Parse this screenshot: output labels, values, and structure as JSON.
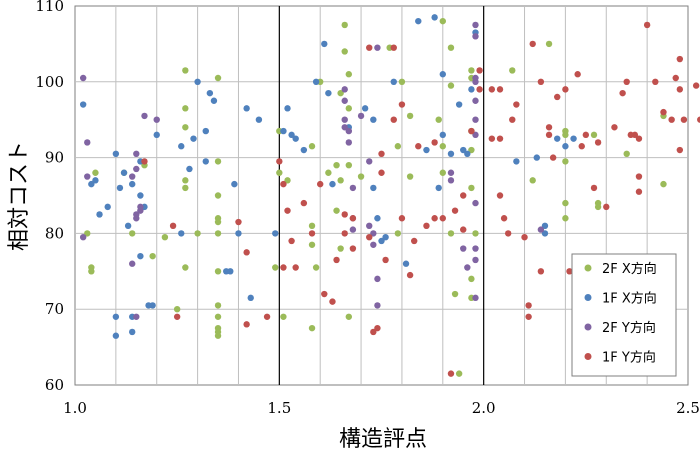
{
  "chart_data": {
    "type": "scatter",
    "title": "",
    "xlabel": "構造評点",
    "ylabel": "相対コスト",
    "xlim": [
      1.0,
      2.5
    ],
    "ylim": [
      60,
      110
    ],
    "x_ticks": [
      "1.0",
      "1.5",
      "2.0",
      "2.5"
    ],
    "y_ticks": [
      "60",
      "70",
      "80",
      "90",
      "100",
      "110"
    ],
    "x_ticks_values": [
      1.0,
      1.5,
      2.0,
      2.5
    ],
    "y_ticks_values": [
      60,
      70,
      80,
      90,
      100,
      110
    ],
    "x_minor_grid_step": 0.1,
    "y_grid_step": 10,
    "reference_lines_x": [
      1.5,
      2.0
    ],
    "grid": true,
    "legend_position": "lower-right",
    "series": [
      {
        "name": "2F X方向",
        "color": "#9bbb59",
        "points": [
          [
            1.04,
            75.5
          ],
          [
            1.04,
            75.0
          ],
          [
            1.03,
            80.0
          ],
          [
            1.05,
            88.0
          ],
          [
            1.12,
            88.0
          ],
          [
            1.14,
            80.0
          ],
          [
            1.17,
            89.0
          ],
          [
            1.19,
            77.0
          ],
          [
            1.22,
            79.5
          ],
          [
            1.25,
            70.0
          ],
          [
            1.27,
            101.5
          ],
          [
            1.27,
            96.5
          ],
          [
            1.27,
            94.0
          ],
          [
            1.27,
            87.0
          ],
          [
            1.27,
            86.0
          ],
          [
            1.27,
            75.5
          ],
          [
            1.3,
            80.0
          ],
          [
            1.35,
            100.5
          ],
          [
            1.35,
            89.5
          ],
          [
            1.35,
            85.0
          ],
          [
            1.35,
            82.0
          ],
          [
            1.35,
            81.5
          ],
          [
            1.35,
            80.0
          ],
          [
            1.35,
            75.0
          ],
          [
            1.35,
            70.5
          ],
          [
            1.35,
            69.0
          ],
          [
            1.35,
            67.5
          ],
          [
            1.35,
            67.0
          ],
          [
            1.35,
            66.5
          ],
          [
            1.49,
            75.5
          ],
          [
            1.5,
            93.5
          ],
          [
            1.5,
            88.0
          ],
          [
            1.51,
            69.0
          ],
          [
            1.52,
            87.0
          ],
          [
            1.58,
            91.5
          ],
          [
            1.58,
            81.0
          ],
          [
            1.58,
            67.5
          ],
          [
            1.58,
            78.5
          ],
          [
            1.59,
            75.5
          ],
          [
            1.6,
            100.0
          ],
          [
            1.62,
            88.0
          ],
          [
            1.64,
            89.0
          ],
          [
            1.64,
            83.0
          ],
          [
            1.65,
            98.5
          ],
          [
            1.65,
            87.0
          ],
          [
            1.65,
            78.0
          ],
          [
            1.66,
            107.5
          ],
          [
            1.66,
            104.0
          ],
          [
            1.67,
            101.0
          ],
          [
            1.67,
            96.5
          ],
          [
            1.67,
            89.0
          ],
          [
            1.67,
            69.0
          ],
          [
            1.7,
            87.5
          ],
          [
            1.77,
            104.5
          ],
          [
            1.79,
            91.5
          ],
          [
            1.79,
            80.0
          ],
          [
            1.8,
            100.0
          ],
          [
            1.82,
            95.5
          ],
          [
            1.82,
            87.5
          ],
          [
            1.9,
            108.0
          ],
          [
            1.92,
            104.5
          ],
          [
            1.92,
            99.5
          ],
          [
            1.89,
            95.0
          ],
          [
            1.9,
            91.5
          ],
          [
            1.9,
            88.0
          ],
          [
            1.92,
            80.0
          ],
          [
            1.93,
            72.0
          ],
          [
            1.94,
            61.5
          ],
          [
            1.97,
            101.5
          ],
          [
            1.97,
            100.5
          ],
          [
            1.97,
            93.5
          ],
          [
            1.97,
            91.0
          ],
          [
            1.97,
            86.0
          ],
          [
            1.98,
            80.0
          ],
          [
            1.97,
            74.0
          ],
          [
            1.97,
            71.5
          ],
          [
            2.07,
            101.5
          ],
          [
            2.12,
            87.0
          ],
          [
            2.16,
            105.0
          ],
          [
            2.2,
            93.5
          ],
          [
            2.2,
            93.0
          ],
          [
            2.2,
            89.5
          ],
          [
            2.2,
            84.0
          ],
          [
            2.2,
            82.0
          ],
          [
            2.27,
            93.0
          ],
          [
            2.28,
            84.0
          ],
          [
            2.28,
            83.5
          ],
          [
            2.35,
            90.5
          ],
          [
            2.44,
            95.5
          ],
          [
            2.44,
            86.5
          ]
        ]
      },
      {
        "name": "1F X方向",
        "color": "#4f81bd",
        "points": [
          [
            1.02,
            97.0
          ],
          [
            1.04,
            86.5
          ],
          [
            1.05,
            87.0
          ],
          [
            1.06,
            82.5
          ],
          [
            1.08,
            83.5
          ],
          [
            1.1,
            90.5
          ],
          [
            1.1,
            69.0
          ],
          [
            1.1,
            66.5
          ],
          [
            1.11,
            86.0
          ],
          [
            1.12,
            88.0
          ],
          [
            1.13,
            81.0
          ],
          [
            1.14,
            86.5
          ],
          [
            1.14,
            69.0
          ],
          [
            1.14,
            67.0
          ],
          [
            1.16,
            89.5
          ],
          [
            1.16,
            85.0
          ],
          [
            1.16,
            77.0
          ],
          [
            1.17,
            83.5
          ],
          [
            1.18,
            70.5
          ],
          [
            1.19,
            70.5
          ],
          [
            1.2,
            93.0
          ],
          [
            1.26,
            91.5
          ],
          [
            1.26,
            80.0
          ],
          [
            1.28,
            88.5
          ],
          [
            1.29,
            92.5
          ],
          [
            1.3,
            100.0
          ],
          [
            1.32,
            93.5
          ],
          [
            1.32,
            89.5
          ],
          [
            1.33,
            98.5
          ],
          [
            1.34,
            97.5
          ],
          [
            1.37,
            75.0
          ],
          [
            1.38,
            75.0
          ],
          [
            1.39,
            86.5
          ],
          [
            1.4,
            80.0
          ],
          [
            1.42,
            96.5
          ],
          [
            1.43,
            71.5
          ],
          [
            1.45,
            95.0
          ],
          [
            1.49,
            80.0
          ],
          [
            1.51,
            93.5
          ],
          [
            1.52,
            96.5
          ],
          [
            1.53,
            93.0
          ],
          [
            1.54,
            92.5
          ],
          [
            1.56,
            91.0
          ],
          [
            1.59,
            100.0
          ],
          [
            1.61,
            105.0
          ],
          [
            1.62,
            98.5
          ],
          [
            1.63,
            86.5
          ],
          [
            1.67,
            94.0
          ],
          [
            1.71,
            96.5
          ],
          [
            1.73,
            95.0
          ],
          [
            1.73,
            86.0
          ],
          [
            1.74,
            82.0
          ],
          [
            1.75,
            79.0
          ],
          [
            1.76,
            79.5
          ],
          [
            1.78,
            100.0
          ],
          [
            1.81,
            76.0
          ],
          [
            1.84,
            108.0
          ],
          [
            1.86,
            91.0
          ],
          [
            1.88,
            108.5
          ],
          [
            1.89,
            86.0
          ],
          [
            1.9,
            101.0
          ],
          [
            1.9,
            93.0
          ],
          [
            1.92,
            90.5
          ],
          [
            1.94,
            97.0
          ],
          [
            1.95,
            91.0
          ],
          [
            1.96,
            90.5
          ],
          [
            1.97,
            99.0
          ],
          [
            1.98,
            106.5
          ],
          [
            2.08,
            89.5
          ],
          [
            2.13,
            90.0
          ],
          [
            2.15,
            80.0
          ],
          [
            2.15,
            81.0
          ],
          [
            2.18,
            92.5
          ],
          [
            2.2,
            91.5
          ],
          [
            2.22,
            92.5
          ]
        ]
      },
      {
        "name": "2F Y方向",
        "color": "#8064a2",
        "points": [
          [
            1.02,
            100.5
          ],
          [
            1.03,
            92.0
          ],
          [
            1.03,
            87.5
          ],
          [
            1.02,
            79.5
          ],
          [
            1.14,
            87.5
          ],
          [
            1.14,
            76.0
          ],
          [
            1.15,
            90.5
          ],
          [
            1.15,
            88.5
          ],
          [
            1.15,
            82.5
          ],
          [
            1.15,
            82.0
          ],
          [
            1.15,
            69.0
          ],
          [
            1.16,
            83.5
          ],
          [
            1.16,
            83.0
          ],
          [
            1.17,
            95.5
          ],
          [
            1.2,
            95.0
          ],
          [
            1.66,
            95.0
          ],
          [
            1.66,
            99.0
          ],
          [
            1.66,
            97.5
          ],
          [
            1.66,
            94.0
          ],
          [
            1.67,
            93.5
          ],
          [
            1.67,
            92.0
          ],
          [
            1.68,
            86.0
          ],
          [
            1.68,
            82.0
          ],
          [
            1.68,
            80.5
          ],
          [
            1.7,
            95.5
          ],
          [
            1.72,
            89.5
          ],
          [
            1.72,
            81.0
          ],
          [
            1.73,
            80.0
          ],
          [
            1.73,
            78.5
          ],
          [
            1.74,
            74.0
          ],
          [
            1.74,
            104.5
          ],
          [
            1.74,
            70.5
          ],
          [
            1.92,
            88.0
          ],
          [
            1.92,
            87.0
          ],
          [
            1.95,
            78.0
          ],
          [
            1.96,
            75.5
          ],
          [
            1.98,
            107.5
          ],
          [
            1.98,
            106.0
          ],
          [
            1.98,
            100.5
          ],
          [
            1.98,
            100.0
          ],
          [
            1.98,
            97.5
          ],
          [
            1.98,
            95.0
          ],
          [
            1.98,
            93.0
          ],
          [
            1.98,
            84.0
          ],
          [
            1.98,
            78.0
          ],
          [
            1.98,
            76.5
          ],
          [
            1.98,
            71.5
          ],
          [
            2.14,
            80.5
          ]
        ]
      },
      {
        "name": "1F Y方向",
        "color": "#c0504d",
        "points": [
          [
            1.17,
            89.5
          ],
          [
            1.24,
            81.0
          ],
          [
            1.25,
            69.0
          ],
          [
            1.4,
            81.5
          ],
          [
            1.42,
            77.5
          ],
          [
            1.42,
            68.0
          ],
          [
            1.47,
            69.0
          ],
          [
            1.5,
            89.5
          ],
          [
            1.51,
            86.5
          ],
          [
            1.51,
            75.5
          ],
          [
            1.52,
            83.0
          ],
          [
            1.53,
            79.0
          ],
          [
            1.54,
            75.5
          ],
          [
            1.56,
            84.0
          ],
          [
            1.58,
            80.0
          ],
          [
            1.6,
            86.5
          ],
          [
            1.61,
            72.0
          ],
          [
            1.63,
            71.0
          ],
          [
            1.64,
            76.5
          ],
          [
            1.66,
            82.5
          ],
          [
            1.66,
            80.0
          ],
          [
            1.68,
            82.0
          ],
          [
            1.68,
            78.0
          ],
          [
            1.72,
            104.5
          ],
          [
            1.72,
            79.5
          ],
          [
            1.73,
            67.0
          ],
          [
            1.74,
            67.5
          ],
          [
            1.75,
            90.5
          ],
          [
            1.75,
            88.0
          ],
          [
            1.76,
            76.5
          ],
          [
            1.78,
            104.5
          ],
          [
            1.78,
            95.0
          ],
          [
            1.8,
            97.0
          ],
          [
            1.8,
            82.0
          ],
          [
            1.82,
            74.5
          ],
          [
            1.83,
            79.0
          ],
          [
            1.84,
            91.5
          ],
          [
            1.86,
            81.0
          ],
          [
            1.88,
            92.0
          ],
          [
            1.88,
            82.0
          ],
          [
            1.9,
            82.0
          ],
          [
            1.92,
            61.5
          ],
          [
            1.93,
            83.0
          ],
          [
            1.95,
            85.0
          ],
          [
            1.95,
            80.5
          ],
          [
            1.97,
            93.5
          ],
          [
            1.99,
            101.5
          ],
          [
            1.99,
            99.0
          ],
          [
            2.02,
            99.0
          ],
          [
            2.02,
            92.5
          ],
          [
            2.04,
            99.0
          ],
          [
            2.04,
            92.5
          ],
          [
            2.04,
            85.0
          ],
          [
            2.05,
            82.0
          ],
          [
            2.06,
            80.0
          ],
          [
            2.07,
            95.0
          ],
          [
            2.08,
            97.0
          ],
          [
            2.11,
            69.0
          ],
          [
            2.12,
            105.0
          ],
          [
            2.14,
            100.0
          ],
          [
            2.16,
            94.0
          ],
          [
            2.16,
            93.0
          ],
          [
            2.17,
            90.0
          ],
          [
            2.18,
            98.0
          ],
          [
            2.2,
            99.0
          ],
          [
            2.21,
            75.0
          ],
          [
            2.23,
            101.0
          ],
          [
            2.24,
            91.5
          ],
          [
            2.25,
            93.0
          ],
          [
            2.27,
            86.0
          ],
          [
            2.28,
            92.0
          ],
          [
            2.3,
            83.5
          ],
          [
            2.32,
            94.0
          ],
          [
            2.34,
            98.5
          ],
          [
            2.35,
            100.0
          ],
          [
            2.36,
            93.0
          ],
          [
            2.37,
            93.0
          ],
          [
            2.38,
            92.5
          ],
          [
            2.38,
            87.5
          ],
          [
            2.38,
            85.5
          ],
          [
            2.4,
            107.5
          ],
          [
            2.42,
            100.0
          ],
          [
            2.44,
            96.0
          ],
          [
            2.46,
            95.0
          ],
          [
            2.48,
            91.0
          ],
          [
            2.48,
            103.0
          ],
          [
            2.47,
            100.5
          ],
          [
            2.48,
            99.0
          ],
          [
            2.49,
            95.0
          ],
          [
            2.52,
            99.5
          ],
          [
            2.53,
            95.0
          ],
          [
            2.55,
            99.0
          ],
          [
            2.14,
            75.0
          ],
          [
            2.1,
            79.5
          ],
          [
            2.11,
            70.5
          ]
        ]
      }
    ]
  }
}
